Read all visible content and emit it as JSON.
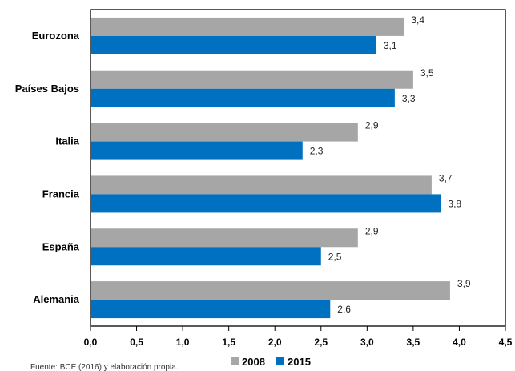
{
  "chart_data": {
    "type": "bar",
    "orientation": "horizontal",
    "categories": [
      "Eurozona",
      "Países Bajos",
      "Italia",
      "Francia",
      "España",
      "Alemania"
    ],
    "series": [
      {
        "name": "2008",
        "color": "#a6a6a6",
        "values": [
          3.4,
          3.5,
          2.9,
          3.7,
          2.9,
          3.9
        ],
        "labels": [
          "3,4",
          "3,5",
          "2,9",
          "3,7",
          "2,9",
          "3,9"
        ]
      },
      {
        "name": "2015",
        "color": "#0070c0",
        "values": [
          3.1,
          3.3,
          2.3,
          3.8,
          2.5,
          2.6
        ],
        "labels": [
          "3,1",
          "3,3",
          "2,3",
          "3,8",
          "2,5",
          "2,6"
        ]
      }
    ],
    "xlim": [
      0,
      4.5
    ],
    "xticks": [
      0,
      0.5,
      1.0,
      1.5,
      2.0,
      2.5,
      3.0,
      3.5,
      4.0,
      4.5
    ],
    "xtick_labels": [
      "0,0",
      "0,5",
      "1,0",
      "1,5",
      "2,0",
      "2,5",
      "3,0",
      "3,5",
      "4,0",
      "4,5"
    ],
    "grid": false,
    "legend": "bottom",
    "source_note": "Fuente: BCE (2016) y elaboración propia."
  }
}
